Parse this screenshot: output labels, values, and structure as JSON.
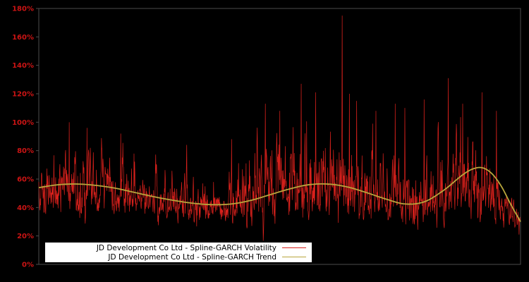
{
  "page": {
    "background": "#000000"
  },
  "chart_data": {
    "type": "line",
    "title": "",
    "xlabel": "",
    "ylabel": "",
    "ylim": [
      0,
      180
    ],
    "yticks": [
      0,
      20,
      40,
      60,
      80,
      100,
      120,
      140,
      160,
      180
    ],
    "ytick_suffix": "%",
    "axis_label_color": "#cc1414",
    "frame_color": "#4d4d4d",
    "background": "#000000",
    "grid": false,
    "legend": {
      "position": "bottom-left",
      "background": "#ffffff",
      "text_color": "#000000"
    },
    "series": [
      {
        "name": "JD Development Co Ltd - Spline-GARCH Volatility",
        "color": "#d9211c",
        "style": "noisy-line",
        "n_points": 1600,
        "seed": 1337,
        "ar_coeff": 0.55,
        "noise_scale": 0.62,
        "min_value": 16,
        "max_value": 178,
        "envelope_x": [
          0,
          0.05,
          0.1,
          0.15,
          0.2,
          0.25,
          0.3,
          0.35,
          0.4,
          0.45,
          0.5,
          0.55,
          0.6,
          0.65,
          0.7,
          0.75,
          0.8,
          0.85,
          0.9,
          0.94,
          0.97,
          1.0
        ],
        "envelope_base": [
          52,
          55,
          53,
          51,
          48,
          45,
          42,
          41,
          43,
          48,
          52,
          55,
          54,
          50,
          46,
          43,
          44,
          52,
          56,
          46,
          36,
          26
        ],
        "envelope_sigma": [
          0.26,
          0.28,
          0.27,
          0.25,
          0.24,
          0.23,
          0.23,
          0.24,
          0.28,
          0.32,
          0.35,
          0.37,
          0.4,
          0.38,
          0.36,
          0.34,
          0.33,
          0.34,
          0.32,
          0.3,
          0.27,
          0.24
        ],
        "spikes": [
          [
            0.063,
            100
          ],
          [
            0.1,
            96
          ],
          [
            0.17,
            92
          ],
          [
            0.47,
            113
          ],
          [
            0.5,
            108
          ],
          [
            0.545,
            127
          ],
          [
            0.575,
            121
          ],
          [
            0.63,
            175
          ],
          [
            0.645,
            120
          ],
          [
            0.66,
            115
          ],
          [
            0.7,
            108
          ],
          [
            0.74,
            113
          ],
          [
            0.76,
            110
          ],
          [
            0.8,
            116
          ],
          [
            0.85,
            131
          ],
          [
            0.88,
            113
          ],
          [
            0.92,
            121
          ],
          [
            0.95,
            108
          ]
        ]
      },
      {
        "name": "JD Development Co Ltd - Spline-GARCH Trend",
        "color": "#b8a63c",
        "style": "smooth-line",
        "x": [
          0,
          0.04,
          0.08,
          0.12,
          0.16,
          0.2,
          0.24,
          0.28,
          0.32,
          0.36,
          0.4,
          0.44,
          0.48,
          0.52,
          0.56,
          0.6,
          0.64,
          0.68,
          0.72,
          0.76,
          0.8,
          0.84,
          0.88,
          0.9,
          0.92,
          0.94,
          0.96,
          0.98,
          1.0
        ],
        "y": [
          54,
          56,
          56.5,
          55.5,
          53.5,
          50.5,
          47.5,
          45,
          43,
          42,
          42.5,
          45,
          49,
          53,
          56,
          56.5,
          54.5,
          50.5,
          46,
          42.5,
          44,
          52,
          63,
          67,
          68,
          64,
          55,
          42,
          30
        ]
      }
    ]
  }
}
